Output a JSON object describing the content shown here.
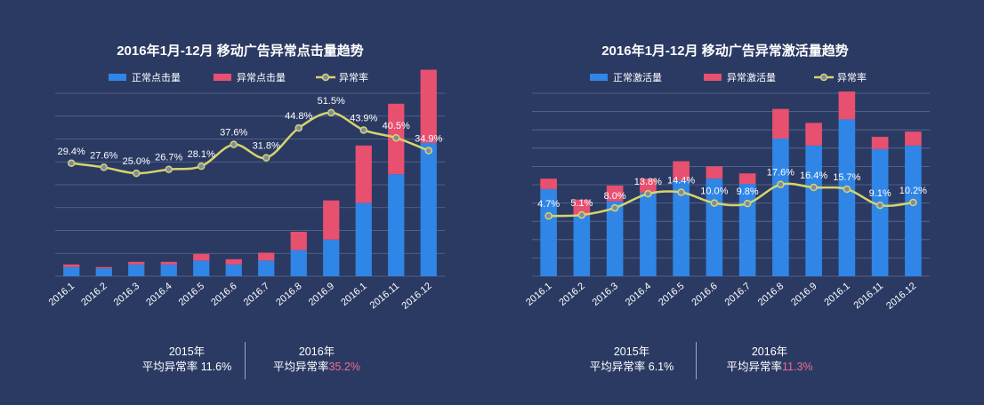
{
  "colors": {
    "background": "#2b3a63",
    "normal": "#2f86e6",
    "abnormal": "#e8506f",
    "rate_line": "#d7d46c",
    "highlight": "#f06c93"
  },
  "chart_data": [
    {
      "type": "bar+line",
      "title": "2016年1月-12月 移动广告异常点击量趋势",
      "xlabel": "",
      "ylabel": "",
      "grid": true,
      "legend_position": "top",
      "categories": [
        "2016.1",
        "2016.2",
        "2016.3",
        "2016.4",
        "2016.5",
        "2016.6",
        "2016.7",
        "2016.8",
        "2016.9",
        "2016.1",
        "2016.11",
        "2016.12"
      ],
      "bar_stacked": true,
      "series": [
        {
          "name": "正常点击量",
          "kind": "bar",
          "color": "#2f86e6",
          "values": [
            0.35,
            0.3,
            0.45,
            0.45,
            0.6,
            0.45,
            0.6,
            1.0,
            1.4,
            2.8,
            3.9,
            5.1
          ]
        },
        {
          "name": "异常点击量",
          "kind": "bar",
          "color": "#e8506f",
          "values": [
            0.1,
            0.05,
            0.1,
            0.1,
            0.25,
            0.2,
            0.3,
            0.7,
            1.5,
            2.2,
            2.7,
            2.8
          ]
        },
        {
          "name": "异常率",
          "kind": "line",
          "color": "#d7d46c",
          "values": [
            29.4,
            27.6,
            25.0,
            26.7,
            28.1,
            37.6,
            31.8,
            44.8,
            51.5,
            43.9,
            40.5,
            34.9
          ],
          "labels": [
            "29.4%",
            "27.6%",
            "25.0%",
            "26.7%",
            "28.1%",
            "37.6%",
            "31.8%",
            "44.8%",
            "51.5%",
            "43.9%",
            "40.5%",
            "34.9%"
          ]
        }
      ],
      "bar_ylim": [
        0,
        7.0
      ],
      "rate_ylim": [
        -20,
        60
      ]
    },
    {
      "type": "bar+line",
      "title": "2016年1月-12月 移动广告异常激活量趋势",
      "xlabel": "",
      "ylabel": "",
      "grid": true,
      "legend_position": "top",
      "categories": [
        "2016.1",
        "2016.2",
        "2016.3",
        "2016.4",
        "2016.5",
        "2016.6",
        "2016.7",
        "2016.8",
        "2016.9",
        "2016.1",
        "2016.11",
        "2016.12"
      ],
      "bar_stacked": true,
      "series": [
        {
          "name": "正常激活量",
          "kind": "bar",
          "color": "#2f86e6",
          "values": [
            5.0,
            3.5,
            4.3,
            4.8,
            5.5,
            5.6,
            5.3,
            7.9,
            7.5,
            9.0,
            7.3,
            7.5
          ]
        },
        {
          "name": "异常激活量",
          "kind": "bar",
          "color": "#e8506f",
          "values": [
            0.6,
            0.9,
            0.9,
            0.8,
            1.1,
            0.7,
            0.6,
            1.7,
            1.3,
            1.6,
            0.7,
            0.8
          ]
        },
        {
          "name": "异常率",
          "kind": "line",
          "color": "#d7d46c",
          "values": [
            4.7,
            5.1,
            8.0,
            13.8,
            14.4,
            10.0,
            9.8,
            17.6,
            16.4,
            15.7,
            9.1,
            10.2
          ],
          "labels": [
            "4.7%",
            "5.1%",
            "8.0%",
            "13.8%",
            "14.4%",
            "10.0%",
            "9.8%",
            "17.6%",
            "16.4%",
            "15.7%",
            "9.1%",
            "10.2%"
          ]
        }
      ],
      "bar_ylim": [
        0,
        10.5
      ],
      "rate_ylim": [
        -20,
        55
      ]
    }
  ],
  "footer": {
    "left": {
      "y2015_label": "2015年",
      "y2015_text": "平均异常率 11.6%",
      "y2016_label": "2016年",
      "y2016_prefix": "平均异常率",
      "y2016_value": "35.2%"
    },
    "right": {
      "y2015_label": "2015年",
      "y2015_text": "平均异常率 6.1%",
      "y2016_label": "2016年",
      "y2016_prefix": "平均异常率",
      "y2016_value": "11.3%"
    }
  }
}
